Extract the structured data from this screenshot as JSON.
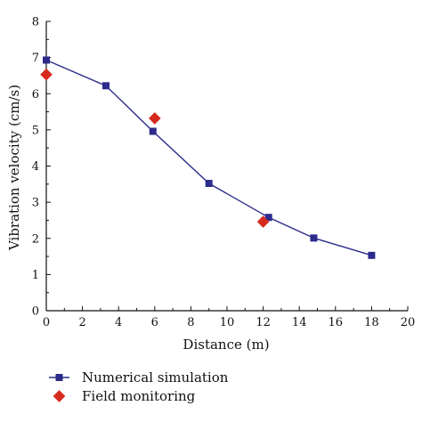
{
  "chart_data": {
    "type": "scatter",
    "xlabel": "Distance (m)",
    "ylabel": "Vibration velocity (cm/s)",
    "xlim": [
      0,
      20
    ],
    "ylim": [
      0,
      8
    ],
    "xticks": [
      0,
      2,
      4,
      6,
      8,
      10,
      12,
      14,
      16,
      18,
      20
    ],
    "yticks": [
      0,
      1,
      2,
      3,
      4,
      5,
      6,
      7,
      8
    ],
    "grid": false,
    "legend_position": "bottom",
    "series": [
      {
        "name": "Numerical simulation",
        "marker": "square",
        "connected": true,
        "color": "#2b2b8c",
        "x": [
          0,
          3.3,
          5.9,
          9.0,
          12.3,
          14.8,
          18.0
        ],
        "y": [
          6.93,
          6.22,
          4.96,
          3.52,
          2.58,
          2.01,
          1.53
        ]
      },
      {
        "name": "Field monitoring",
        "marker": "diamond",
        "connected": false,
        "color": "#d62a1e",
        "x": [
          0,
          6.0,
          12.0
        ],
        "y": [
          6.53,
          5.32,
          2.46
        ]
      }
    ]
  }
}
